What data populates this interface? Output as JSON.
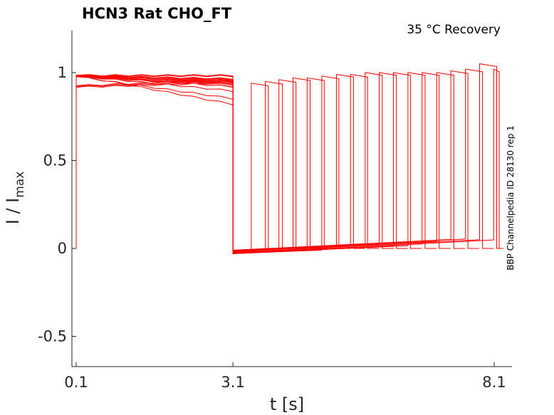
{
  "chart_data": {
    "type": "line",
    "title": "HCN3  Rat  CHO_FT",
    "condition": "35 °C  Recovery",
    "side_label": "BBP Channelpedia ID 28130 rep 1",
    "xlabel": "t [s]",
    "ylabel_main": "I / I",
    "ylabel_sub": "max",
    "xlim": [
      0.0,
      8.2
    ],
    "ylim": [
      -0.67,
      1.23
    ],
    "x_ticks": [
      {
        "value": 0.1,
        "label": "0.1"
      },
      {
        "value": 3.1,
        "label": "3.1"
      },
      {
        "value": 8.1,
        "label": "8.1"
      }
    ],
    "y_ticks": [
      {
        "value": 1,
        "label": "1"
      },
      {
        "value": 0.5,
        "label": "0.5"
      },
      {
        "value": 0,
        "label": "0"
      },
      {
        "value": -0.5,
        "label": "-0.5"
      }
    ],
    "color": "#ff0000",
    "prepulse": {
      "start": 0.1,
      "end": 3.1,
      "peak_start": 0.985,
      "end_values": [
        0.985,
        0.97,
        0.96,
        0.955,
        0.95,
        0.945,
        0.94,
        0.935,
        0.93,
        0.92,
        0.9,
        0.86,
        0.82
      ]
    },
    "series": [
      {
        "recovery_interval": 0.35,
        "test_peak": 0.94
      },
      {
        "recovery_interval": 0.62,
        "test_peak": 0.95
      },
      {
        "recovery_interval": 0.88,
        "test_peak": 0.96
      },
      {
        "recovery_interval": 1.15,
        "test_peak": 0.97
      },
      {
        "recovery_interval": 1.42,
        "test_peak": 0.97
      },
      {
        "recovery_interval": 1.7,
        "test_peak": 0.98
      },
      {
        "recovery_interval": 1.98,
        "test_peak": 0.99
      },
      {
        "recovery_interval": 2.25,
        "test_peak": 0.99
      },
      {
        "recovery_interval": 2.53,
        "test_peak": 1.0
      },
      {
        "recovery_interval": 2.8,
        "test_peak": 1.0
      },
      {
        "recovery_interval": 3.07,
        "test_peak": 1.0
      },
      {
        "recovery_interval": 3.35,
        "test_peak": 1.0
      },
      {
        "recovery_interval": 3.62,
        "test_peak": 1.0
      },
      {
        "recovery_interval": 3.9,
        "test_peak": 1.0
      },
      {
        "recovery_interval": 4.17,
        "test_peak": 1.01
      },
      {
        "recovery_interval": 4.45,
        "test_peak": 1.02
      },
      {
        "recovery_interval": 4.72,
        "test_peak": 1.05
      },
      {
        "recovery_interval": 4.99,
        "test_peak": 1.02
      }
    ]
  }
}
